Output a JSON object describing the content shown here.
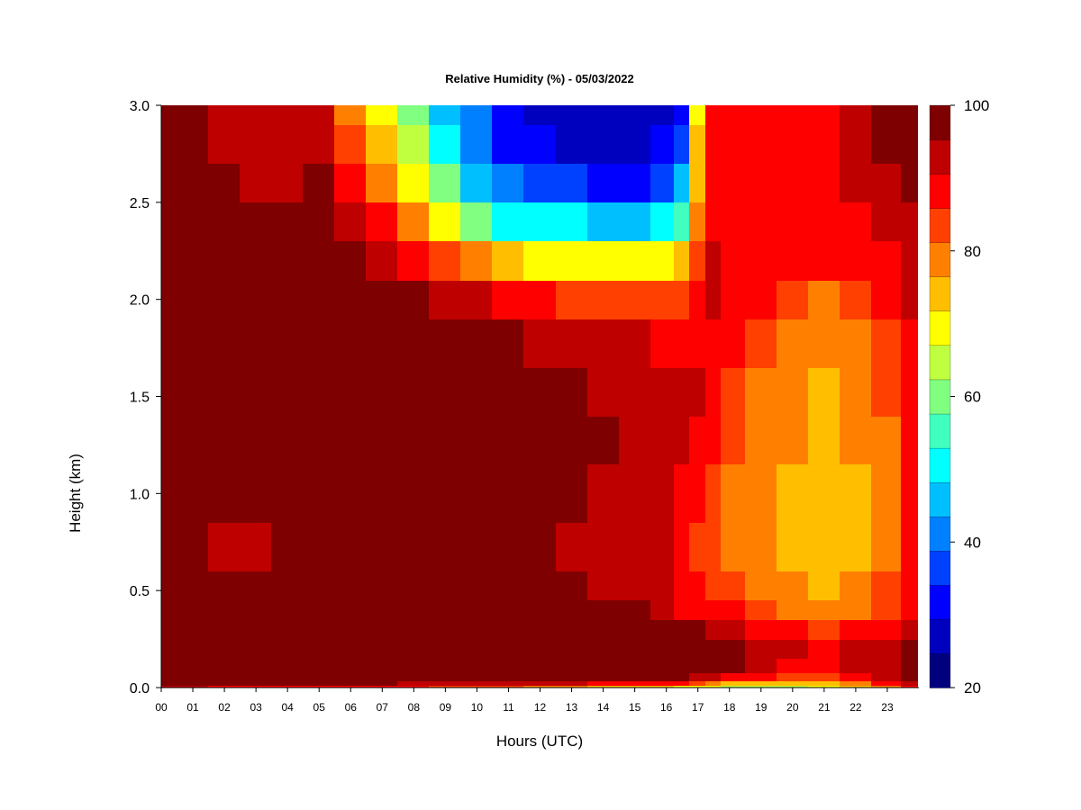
{
  "chart_data": {
    "type": "heatmap",
    "title": "Relative Humidity (%) - 05/03/2022",
    "xlabel": "Hours (UTC)",
    "ylabel": "Height (km)",
    "x_ticks": [
      "00",
      "01",
      "02",
      "03",
      "04",
      "05",
      "06",
      "07",
      "08",
      "09",
      "10",
      "11",
      "12",
      "13",
      "14",
      "15",
      "16",
      "17",
      "18",
      "19",
      "20",
      "21",
      "22",
      "23"
    ],
    "y_ticks": [
      "0.0",
      "0.5",
      "1.0",
      "1.5",
      "2.0",
      "2.5",
      "3.0"
    ],
    "xlim": [
      0,
      24
    ],
    "ylim": [
      0,
      3
    ],
    "colorbar": {
      "range": [
        20,
        100
      ],
      "ticks": [
        "20",
        "40",
        "60",
        "80",
        "100"
      ],
      "colors": [
        "#00007F",
        "#0000BF",
        "#0000FF",
        "#0040FF",
        "#0080FF",
        "#00BFFF",
        "#00FFFF",
        "#40FFBF",
        "#80FF80",
        "#BFFF40",
        "#FFFF00",
        "#FFBF00",
        "#FF8000",
        "#FF4000",
        "#FF0000",
        "#BF0000",
        "#7F0000"
      ]
    },
    "height_km": [
      0.0,
      0.02,
      0.05,
      0.1,
      0.2,
      0.3,
      0.4,
      0.5,
      0.7,
      1.0,
      1.3,
      1.5,
      1.8,
      2.0,
      2.2,
      2.4,
      2.6,
      2.8,
      3.0
    ],
    "hours": [
      0,
      1,
      2,
      3,
      4,
      5,
      6,
      7,
      8,
      9,
      10,
      11,
      12,
      13,
      14,
      15,
      16,
      16.5,
      17,
      17.5,
      18,
      19,
      20,
      21,
      22,
      23,
      23.9
    ],
    "rh": [
      [
        92,
        99,
        99,
        99,
        99,
        99,
        99,
        99,
        99,
        99,
        99,
        99,
        99,
        99,
        99,
        99,
        99,
        99,
        99
      ],
      [
        92,
        98,
        99,
        99,
        99,
        99,
        99,
        97,
        98,
        98,
        99,
        99,
        99,
        99,
        99,
        99,
        98,
        98,
        98
      ],
      [
        90,
        97,
        99,
        99,
        99,
        99,
        99,
        96,
        95,
        96,
        98,
        99,
        99,
        99,
        99,
        99,
        96,
        93,
        92
      ],
      [
        90,
        97,
        99,
        99,
        99,
        99,
        98,
        96,
        95,
        97,
        99,
        99,
        99,
        99,
        99,
        98,
        95,
        93,
        92
      ],
      [
        90,
        97,
        99,
        99,
        99,
        99,
        99,
        97,
        96,
        97,
        99,
        99,
        99,
        99,
        99,
        98,
        95,
        92,
        91
      ],
      [
        90,
        97,
        99,
        99,
        99,
        99,
        99,
        97,
        96,
        97,
        99,
        99,
        99,
        99,
        99,
        98,
        96,
        94,
        93
      ],
      [
        90,
        97,
        99,
        99,
        99,
        99,
        99,
        98,
        97,
        98,
        99,
        99,
        99,
        99,
        97,
        93,
        88,
        82,
        78
      ],
      [
        88,
        96,
        99,
        99,
        99,
        99,
        99,
        98,
        97,
        98,
        99,
        99,
        99,
        99,
        95,
        88,
        80,
        74,
        70
      ],
      [
        86,
        95,
        99,
        99,
        99,
        99,
        99,
        98,
        97,
        98,
        99,
        99,
        99,
        98,
        90,
        79,
        69,
        63,
        60
      ],
      [
        85,
        95,
        99,
        99,
        99,
        99,
        99,
        98,
        97,
        98,
        99,
        99,
        99,
        95,
        85,
        70,
        58,
        52,
        48
      ],
      [
        84,
        94,
        99,
        99,
        99,
        99,
        99,
        98,
        97,
        98,
        99,
        99,
        98,
        92,
        78,
        60,
        48,
        42,
        40
      ],
      [
        82,
        93,
        99,
        99,
        99,
        99,
        99,
        98,
        97,
        98,
        99,
        98,
        96,
        88,
        72,
        52,
        40,
        34,
        30
      ],
      [
        80,
        92,
        99,
        99,
        99,
        99,
        99,
        97,
        96,
        97,
        98,
        97,
        94,
        86,
        70,
        50,
        36,
        30,
        28
      ],
      [
        78,
        91,
        99,
        99,
        99,
        99,
        98,
        96,
        95,
        96,
        97,
        96,
        93,
        85,
        70,
        49,
        35,
        29,
        27
      ],
      [
        76,
        90,
        98,
        99,
        99,
        99,
        97,
        95,
        94,
        95,
        96,
        95,
        92,
        84,
        69,
        48,
        34,
        28,
        26
      ],
      [
        74,
        89,
        98,
        99,
        99,
        99,
        96,
        94,
        93,
        94,
        95,
        94,
        91,
        84,
        69,
        48,
        34,
        28,
        26
      ],
      [
        72,
        88,
        97,
        99,
        99,
        99,
        95,
        93,
        92,
        93,
        94,
        93,
        90,
        84,
        70,
        50,
        36,
        30,
        28
      ],
      [
        70,
        86,
        96,
        99,
        99,
        97,
        90,
        88,
        87,
        89,
        92,
        92,
        89,
        84,
        72,
        56,
        44,
        36,
        32
      ],
      [
        70,
        84,
        95,
        98,
        98,
        96,
        88,
        86,
        84,
        86,
        90,
        91,
        90,
        88,
        84,
        80,
        76,
        72,
        70
      ],
      [
        68,
        80,
        92,
        97,
        97,
        94,
        88,
        85,
        83,
        84,
        87,
        89,
        90,
        92,
        92,
        90,
        88,
        87,
        87
      ],
      [
        66,
        76,
        88,
        96,
        97,
        93,
        86,
        82,
        80,
        80,
        83,
        85,
        87,
        89,
        90,
        89,
        88,
        88,
        88
      ],
      [
        66,
        74,
        86,
        93,
        94,
        90,
        83,
        80,
        78,
        78,
        79,
        81,
        83,
        86,
        87,
        88,
        88,
        88,
        88
      ],
      [
        67,
        74,
        84,
        90,
        91,
        86,
        79,
        77,
        76,
        76,
        77,
        78,
        79,
        83,
        86,
        88,
        88,
        88,
        89
      ],
      [
        68,
        76,
        85,
        90,
        90,
        84,
        77,
        75,
        74,
        74,
        75,
        76,
        77,
        81,
        86,
        88,
        89,
        89,
        90
      ],
      [
        72,
        80,
        88,
        92,
        92,
        86,
        79,
        77,
        76,
        76,
        77,
        78,
        79,
        82,
        86,
        89,
        91,
        92,
        93
      ],
      [
        80,
        88,
        93,
        95,
        95,
        90,
        84,
        82,
        80,
        80,
        81,
        82,
        83,
        86,
        90,
        93,
        95,
        96,
        96
      ],
      [
        86,
        92,
        96,
        97,
        97,
        94,
        89,
        87,
        86,
        86,
        87,
        88,
        89,
        91,
        93,
        95,
        96,
        97,
        97
      ]
    ]
  }
}
